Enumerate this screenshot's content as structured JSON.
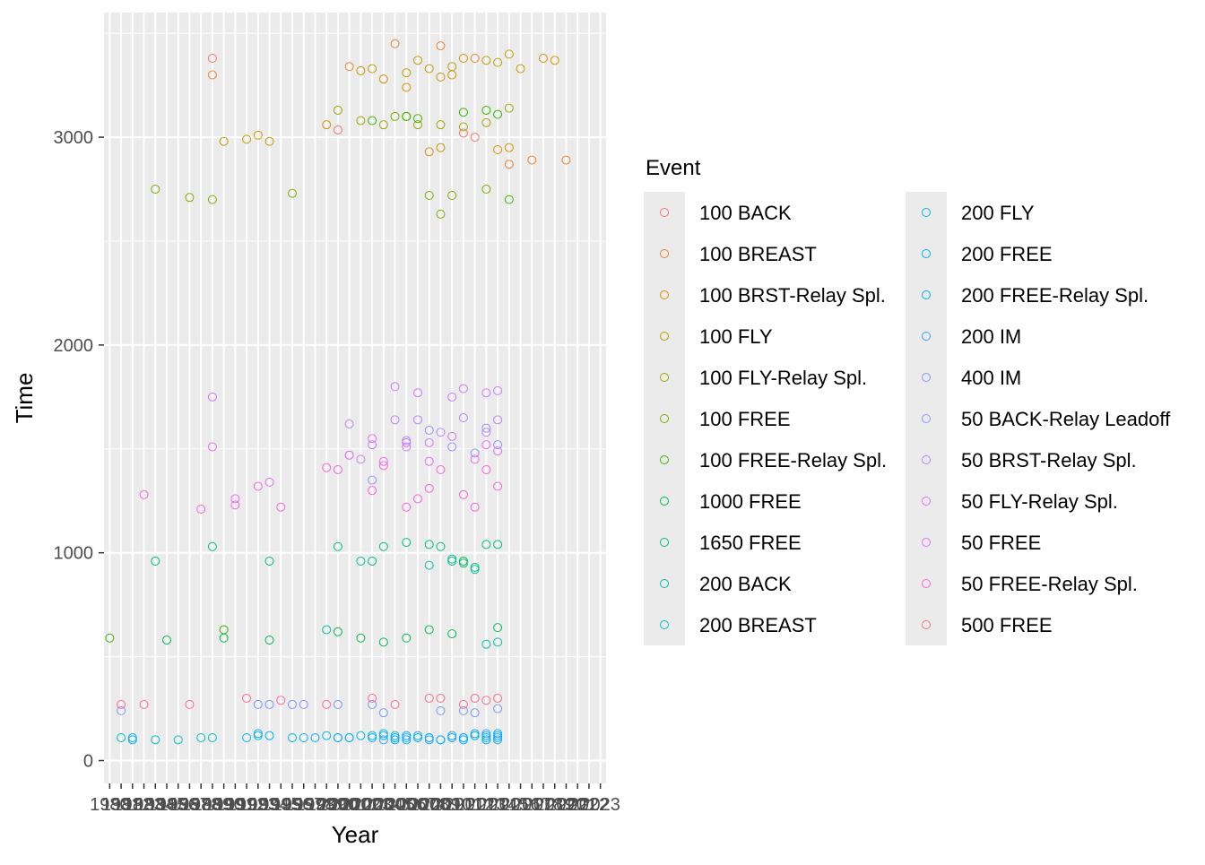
{
  "chart_data": {
    "type": "scatter",
    "title": "",
    "xlabel": "Year",
    "ylabel": "Time",
    "grid": true,
    "legend_position": "right",
    "legend_title": "Event",
    "x_categories": [
      "1980",
      "1981",
      "1982",
      "1983",
      "1984",
      "1985",
      "1986",
      "1987",
      "1988",
      "1989",
      "1990",
      "1991",
      "1992",
      "1993",
      "1994",
      "1995",
      "1996",
      "1997",
      "1998",
      "1999",
      "2000",
      "2001",
      "2002",
      "2003",
      "2004",
      "2005",
      "2006",
      "2007",
      "2008",
      "2009",
      "2010",
      "2011",
      "2012",
      "2013",
      "2014",
      "2015",
      "2016",
      "2017",
      "2018",
      "2019",
      "2020",
      "2021",
      "2022",
      "2023"
    ],
    "x_tick_labels": [
      "1980",
      "1981",
      "1982",
      "1983",
      "1984",
      "1985",
      "1986",
      "1987",
      "1988",
      "1989",
      "1990",
      "1991",
      "1992",
      "1993",
      "1994",
      "1995",
      "1996",
      "1997",
      "1998",
      "1999",
      "2000",
      "2001",
      "2002",
      "2003",
      "2004",
      "2005",
      "2006",
      "2007",
      "2008",
      "2009",
      "2010",
      "2011",
      "2012",
      "2013",
      "2014",
      "2015",
      "2016",
      "2017",
      "2018",
      "2019",
      "2020",
      "2021",
      "2022",
      "2023"
    ],
    "y_range": [
      -110,
      3600
    ],
    "y_ticks": [
      0,
      1000,
      2000,
      3000
    ],
    "series": [
      {
        "name": "100 BACK",
        "color": "#F8766D",
        "points": [
          [
            9,
            3380
          ],
          [
            20,
            3035
          ],
          [
            32,
            3000
          ],
          [
            31,
            3020
          ]
        ]
      },
      {
        "name": "100 BREAST",
        "color": "#EA8331",
        "points": [
          [
            9,
            3300
          ],
          [
            21,
            3340
          ],
          [
            25,
            3450
          ],
          [
            29,
            3440
          ],
          [
            32,
            3380
          ],
          [
            35,
            2870
          ],
          [
            37,
            2890
          ],
          [
            40,
            2890
          ]
        ]
      },
      {
        "name": "100 BRST-Relay Spl.",
        "color": "#D89000",
        "points": [
          [
            13,
            3010
          ],
          [
            19,
            3060
          ],
          [
            24,
            3280
          ],
          [
            26,
            3240
          ],
          [
            28,
            2930
          ],
          [
            29,
            2950
          ],
          [
            30,
            3300
          ],
          [
            31,
            3380
          ],
          [
            34,
            2940
          ],
          [
            35,
            2950
          ],
          [
            38,
            3380
          ],
          [
            39,
            3370
          ]
        ]
      },
      {
        "name": "100 FLY",
        "color": "#C09B00",
        "points": [
          [
            10,
            2980
          ],
          [
            12,
            2990
          ],
          [
            14,
            2980
          ],
          [
            22,
            3320
          ],
          [
            23,
            3330
          ],
          [
            26,
            3310
          ],
          [
            27,
            3370
          ],
          [
            28,
            3330
          ],
          [
            29,
            3290
          ],
          [
            30,
            3340
          ],
          [
            33,
            3370
          ],
          [
            34,
            3360
          ],
          [
            35,
            3400
          ],
          [
            36,
            3330
          ]
        ]
      },
      {
        "name": "100 FLY-Relay Spl.",
        "color": "#A3A500",
        "points": [
          [
            20,
            3130
          ],
          [
            22,
            3080
          ],
          [
            24,
            3060
          ],
          [
            27,
            3060
          ],
          [
            29,
            3060
          ],
          [
            31,
            3050
          ],
          [
            33,
            3070
          ],
          [
            35,
            3140
          ]
        ]
      },
      {
        "name": "100 FREE",
        "color": "#7CAE00",
        "points": [
          [
            4,
            2750
          ],
          [
            7,
            2710
          ],
          [
            9,
            2700
          ],
          [
            16,
            2730
          ],
          [
            25,
            3100
          ],
          [
            26,
            3100
          ],
          [
            28,
            2720
          ],
          [
            29,
            2630
          ],
          [
            30,
            2720
          ],
          [
            33,
            2750
          ]
        ]
      },
      {
        "name": "100 FREE-Relay Spl.",
        "color": "#39B600",
        "points": [
          [
            0,
            590
          ],
          [
            10,
            630
          ],
          [
            23,
            3080
          ],
          [
            26,
            3100
          ],
          [
            27,
            3090
          ],
          [
            31,
            3120
          ],
          [
            33,
            3130
          ],
          [
            34,
            3110
          ],
          [
            35,
            2700
          ]
        ]
      },
      {
        "name": "1000 FREE",
        "color": "#00BB4E",
        "points": [
          [
            5,
            580
          ],
          [
            10,
            590
          ],
          [
            14,
            580
          ],
          [
            20,
            620
          ],
          [
            22,
            590
          ],
          [
            24,
            570
          ],
          [
            26,
            590
          ],
          [
            28,
            630
          ],
          [
            30,
            610
          ],
          [
            31,
            960
          ],
          [
            34,
            640
          ]
        ]
      },
      {
        "name": "1650 FREE",
        "color": "#00BF7D",
        "points": [
          [
            4,
            960
          ],
          [
            9,
            1030
          ],
          [
            14,
            960
          ],
          [
            20,
            1030
          ],
          [
            23,
            960
          ],
          [
            24,
            1030
          ],
          [
            26,
            1050
          ],
          [
            28,
            1040
          ],
          [
            29,
            1030
          ],
          [
            30,
            970
          ],
          [
            31,
            950
          ],
          [
            32,
            930
          ],
          [
            33,
            1040
          ],
          [
            34,
            1040
          ]
        ]
      },
      {
        "name": "200 BACK",
        "color": "#00C1A3",
        "points": [
          [
            19,
            630
          ],
          [
            22,
            960
          ],
          [
            28,
            940
          ],
          [
            30,
            960
          ],
          [
            32,
            920
          ],
          [
            33,
            560
          ],
          [
            34,
            570
          ]
        ]
      },
      {
        "name": "200 BREAST",
        "color": "#00BFC4",
        "points": [
          [
            1,
            110
          ],
          [
            4,
            100
          ],
          [
            6,
            100
          ],
          [
            8,
            110
          ],
          [
            9,
            110
          ],
          [
            21,
            110
          ],
          [
            25,
            120
          ],
          [
            28,
            110
          ],
          [
            30,
            110
          ],
          [
            32,
            120
          ],
          [
            33,
            110
          ]
        ]
      },
      {
        "name": "200 FLY",
        "color": "#00B9E3",
        "points": [
          [
            2,
            100
          ],
          [
            12,
            110
          ],
          [
            13,
            120
          ],
          [
            16,
            110
          ],
          [
            17,
            110
          ],
          [
            19,
            120
          ],
          [
            20,
            110
          ],
          [
            22,
            120
          ],
          [
            23,
            120
          ],
          [
            24,
            130
          ],
          [
            26,
            100
          ],
          [
            27,
            120
          ],
          [
            29,
            100
          ],
          [
            31,
            110
          ],
          [
            32,
            120
          ],
          [
            34,
            110
          ]
        ]
      },
      {
        "name": "200 FREE",
        "color": "#00ADFA",
        "points": [
          [
            2,
            110
          ],
          [
            13,
            130
          ],
          [
            18,
            110
          ],
          [
            21,
            110
          ],
          [
            24,
            120
          ],
          [
            25,
            100
          ],
          [
            26,
            120
          ],
          [
            27,
            110
          ],
          [
            30,
            120
          ],
          [
            31,
            100
          ],
          [
            33,
            100
          ],
          [
            34,
            120
          ]
        ]
      },
      {
        "name": "200 FREE-Relay Spl.",
        "color": "#00A9FF",
        "points": [
          [
            14,
            120
          ],
          [
            20,
            110
          ],
          [
            23,
            110
          ],
          [
            25,
            110
          ],
          [
            28,
            110
          ],
          [
            29,
            100
          ],
          [
            31,
            110
          ],
          [
            32,
            130
          ],
          [
            33,
            120
          ],
          [
            34,
            130
          ]
        ]
      },
      {
        "name": "200 IM",
        "color": "#35A2FF",
        "points": [
          [
            24,
            100
          ],
          [
            26,
            110
          ],
          [
            28,
            100
          ],
          [
            30,
            110
          ],
          [
            33,
            130
          ],
          [
            34,
            100
          ]
        ]
      },
      {
        "name": "400 IM",
        "color": "#7997FF",
        "points": [
          [
            1,
            240
          ],
          [
            13,
            270
          ],
          [
            14,
            270
          ],
          [
            16,
            270
          ],
          [
            20,
            270
          ],
          [
            23,
            270
          ],
          [
            24,
            230
          ],
          [
            29,
            240
          ],
          [
            31,
            240
          ],
          [
            32,
            230
          ],
          [
            34,
            250
          ]
        ]
      },
      {
        "name": "50 BACK-Relay Leadoff",
        "color": "#9590FF",
        "points": [
          [
            17,
            270
          ],
          [
            23,
            1350
          ],
          [
            26,
            1540
          ],
          [
            28,
            1590
          ],
          [
            30,
            1510
          ],
          [
            32,
            1480
          ],
          [
            33,
            1600
          ],
          [
            34,
            1520
          ]
        ]
      },
      {
        "name": "50 BRST-Relay Spl.",
        "color": "#B983FF",
        "points": [
          [
            21,
            1620
          ],
          [
            23,
            1520
          ],
          [
            25,
            1640
          ],
          [
            26,
            1510
          ],
          [
            27,
            1640
          ],
          [
            29,
            1580
          ],
          [
            31,
            1650
          ],
          [
            33,
            1580
          ],
          [
            34,
            1640
          ]
        ]
      },
      {
        "name": "50 FLY-Relay Spl.",
        "color": "#D277FF",
        "points": [
          [
            9,
            1750
          ],
          [
            21,
            1470
          ],
          [
            22,
            1450
          ],
          [
            25,
            1800
          ],
          [
            27,
            1770
          ],
          [
            28,
            1530
          ],
          [
            30,
            1750
          ],
          [
            31,
            1790
          ],
          [
            33,
            1770
          ],
          [
            34,
            1780
          ]
        ]
      },
      {
        "name": "50 FREE",
        "color": "#E76BF3",
        "points": [
          [
            9,
            1510
          ],
          [
            11,
            1260
          ],
          [
            14,
            1340
          ],
          [
            20,
            1400
          ],
          [
            21,
            1470
          ],
          [
            23,
            1550
          ],
          [
            24,
            1440
          ],
          [
            26,
            1530
          ],
          [
            28,
            1440
          ],
          [
            30,
            1560
          ],
          [
            32,
            1450
          ],
          [
            33,
            1520
          ],
          [
            34,
            1490
          ]
        ]
      },
      {
        "name": "50 FREE-Relay Spl.",
        "color": "#F863DF",
        "points": [
          [
            3,
            1280
          ],
          [
            8,
            1210
          ],
          [
            11,
            1230
          ],
          [
            13,
            1320
          ],
          [
            15,
            1220
          ],
          [
            19,
            1410
          ],
          [
            23,
            1300
          ],
          [
            24,
            1420
          ],
          [
            26,
            1220
          ],
          [
            27,
            1260
          ],
          [
            28,
            1310
          ],
          [
            29,
            1400
          ],
          [
            31,
            1280
          ],
          [
            32,
            1220
          ],
          [
            33,
            1400
          ],
          [
            34,
            1320
          ]
        ]
      },
      {
        "name": "500 FREE",
        "color": "#FF6C91",
        "points": [
          [
            1,
            270
          ],
          [
            3,
            270
          ],
          [
            7,
            270
          ],
          [
            12,
            300
          ],
          [
            15,
            290
          ],
          [
            19,
            270
          ],
          [
            23,
            300
          ],
          [
            25,
            270
          ],
          [
            28,
            300
          ],
          [
            29,
            300
          ],
          [
            31,
            270
          ],
          [
            32,
            300
          ],
          [
            33,
            290
          ],
          [
            34,
            300
          ]
        ]
      }
    ]
  }
}
